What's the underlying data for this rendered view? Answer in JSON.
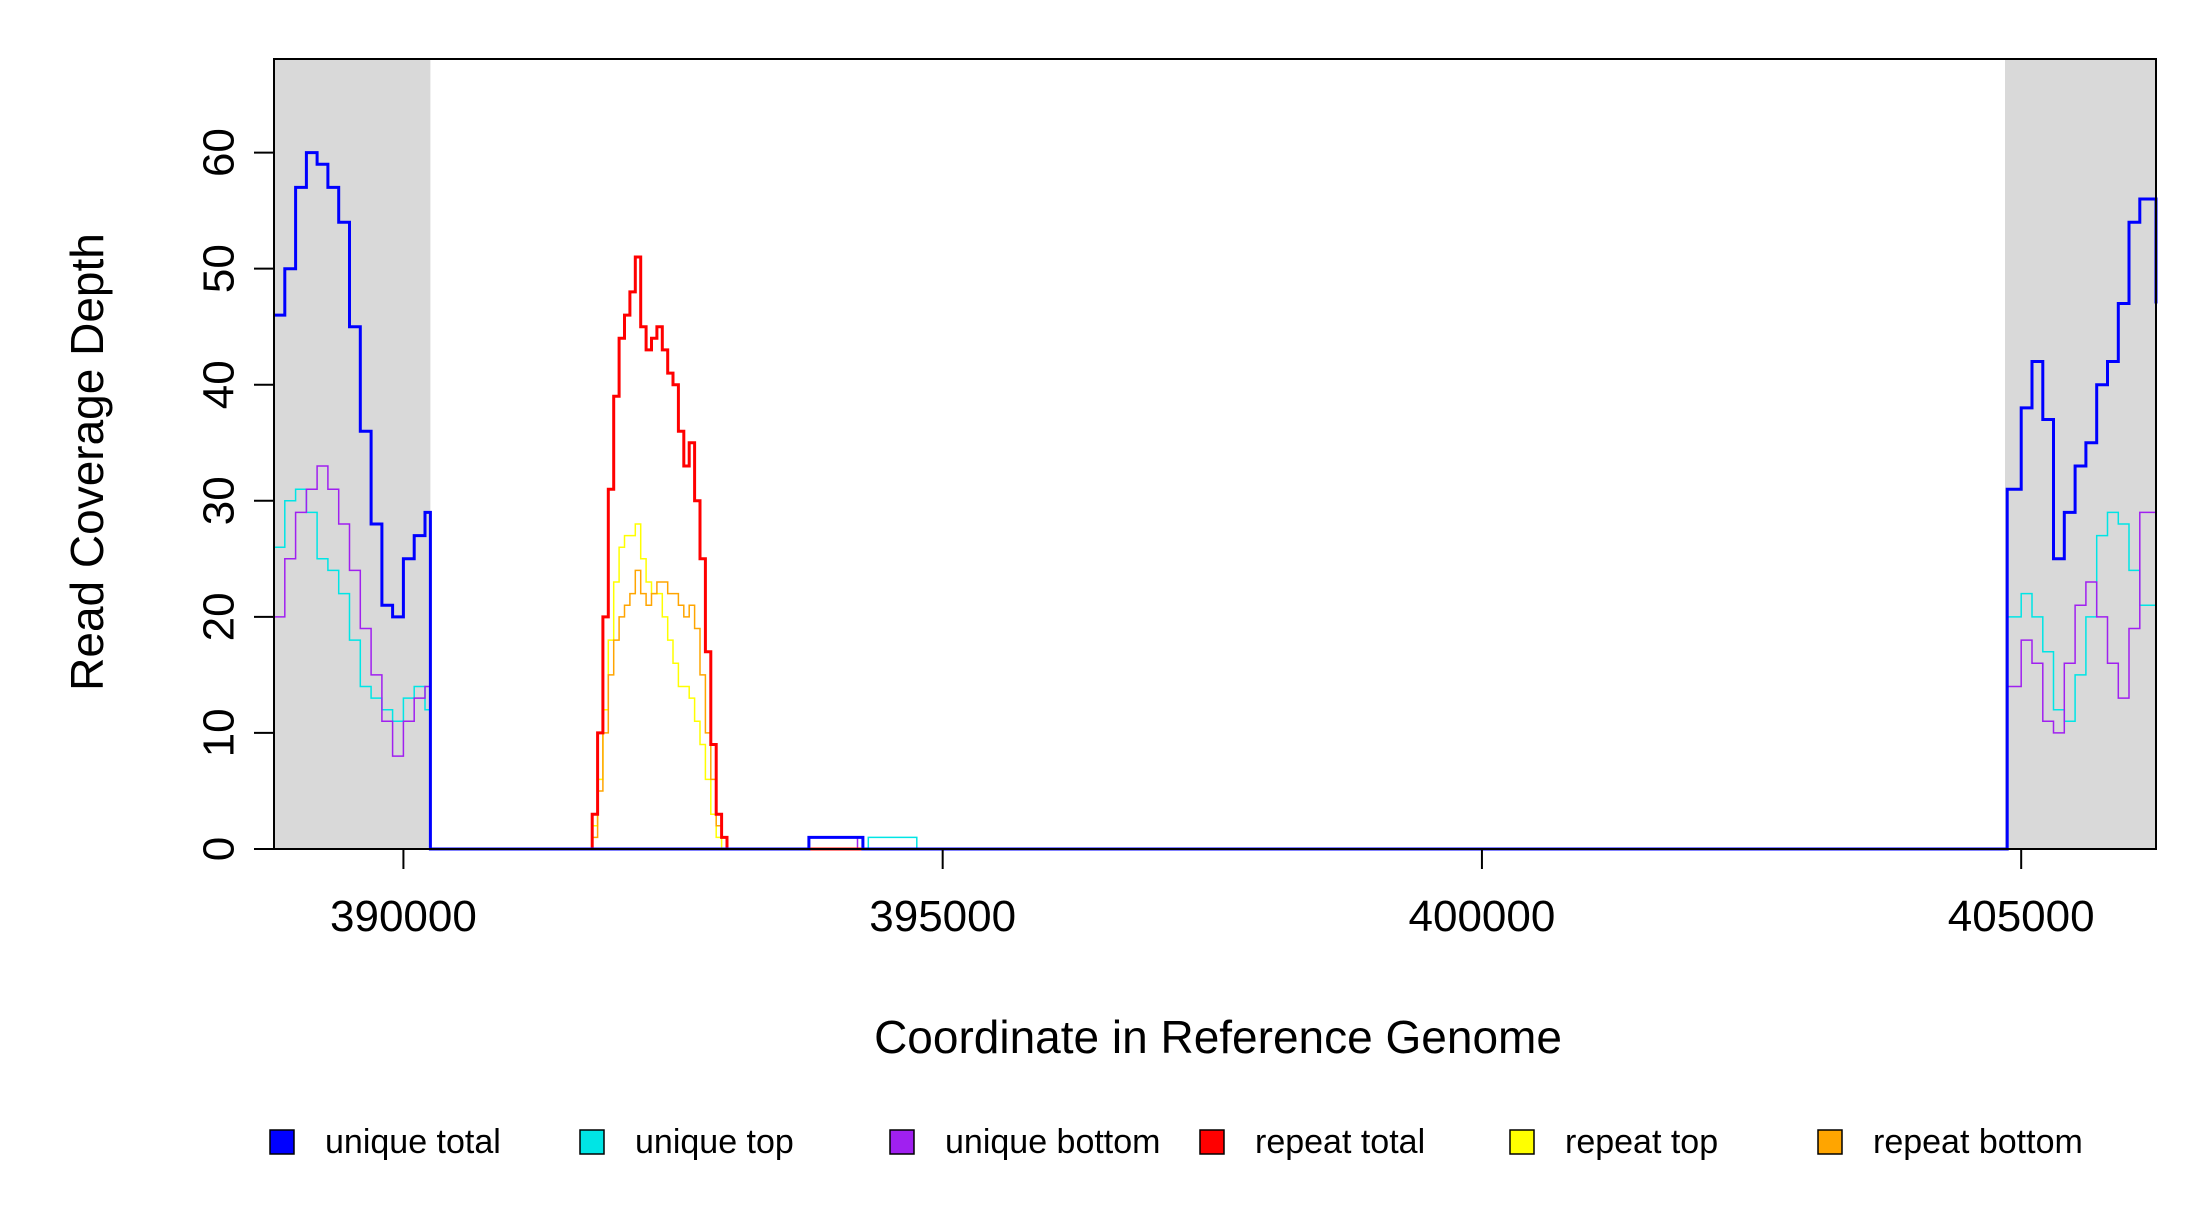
{
  "chart_data": {
    "type": "line",
    "title": "",
    "xlabel": "Coordinate in Reference Genome",
    "ylabel": "Read Coverage Depth",
    "xlim": [
      388800,
      406250
    ],
    "ylim": [
      0,
      65
    ],
    "x_ticks": [
      390000,
      395000,
      400000,
      405000
    ],
    "y_ticks": [
      0,
      10,
      20,
      30,
      40,
      50,
      60
    ],
    "grid": false,
    "legend_position": "bottom",
    "shaded_regions": [
      {
        "x0": 388800,
        "x1": 390250,
        "color": "#d9d9d9"
      },
      {
        "x0": 404850,
        "x1": 406250,
        "color": "#d9d9d9"
      }
    ],
    "series": [
      {
        "name": "unique total",
        "color": "#0000ff",
        "stroke_width": 3,
        "x": [
          388800,
          388900,
          389000,
          389100,
          389200,
          389300,
          389400,
          389500,
          389600,
          389700,
          389800,
          389900,
          390000,
          390100,
          390200,
          390250,
          390260,
          393750,
          393760,
          394000,
          394010,
          394250,
          394260,
          404850,
          404870,
          405000,
          405100,
          405200,
          405300,
          405400,
          405500,
          405600,
          405700,
          405800,
          405900,
          406000,
          406100,
          406250
        ],
        "y": [
          46,
          50,
          57,
          60,
          59,
          57,
          54,
          45,
          36,
          28,
          21,
          20,
          25,
          27,
          29,
          0,
          0,
          0,
          1,
          1,
          1,
          1,
          0,
          0,
          31,
          38,
          42,
          37,
          25,
          29,
          33,
          35,
          40,
          42,
          47,
          54,
          56,
          47
        ]
      },
      {
        "name": "unique top",
        "color": "#00e5e5",
        "stroke_width": 1.5,
        "x": [
          388800,
          388900,
          389000,
          389100,
          389200,
          389300,
          389400,
          389500,
          389600,
          389700,
          389800,
          389900,
          390000,
          390100,
          390200,
          390250,
          390260,
          394300,
          394310,
          394750,
          394760,
          404850,
          404870,
          405000,
          405100,
          405200,
          405300,
          405400,
          405500,
          405600,
          405700,
          405800,
          405900,
          406000,
          406100,
          406250
        ],
        "y": [
          26,
          30,
          31,
          29,
          25,
          24,
          22,
          18,
          14,
          13,
          12,
          11,
          13,
          14,
          12,
          0,
          0,
          0,
          1,
          1,
          0,
          0,
          20,
          22,
          20,
          17,
          12,
          11,
          15,
          20,
          27,
          29,
          28,
          24,
          21,
          16
        ]
      },
      {
        "name": "unique bottom",
        "color": "#a020f0",
        "stroke_width": 1.5,
        "x": [
          388800,
          388900,
          389000,
          389100,
          389200,
          389300,
          389400,
          389500,
          389600,
          389700,
          389800,
          389900,
          390000,
          390100,
          390200,
          390250,
          390260,
          393750,
          393760,
          394200,
          394210,
          404850,
          404870,
          405000,
          405100,
          405200,
          405300,
          405400,
          405500,
          405600,
          405700,
          405800,
          405900,
          406000,
          406100,
          406250
        ],
        "y": [
          20,
          25,
          29,
          31,
          33,
          31,
          28,
          24,
          19,
          15,
          11,
          8,
          11,
          13,
          14,
          0,
          0,
          0,
          1,
          1,
          0,
          0,
          14,
          18,
          16,
          11,
          10,
          16,
          21,
          23,
          20,
          16,
          13,
          19,
          29,
          32
        ]
      },
      {
        "name": "repeat total",
        "color": "#ff0000",
        "stroke_width": 3,
        "x": [
          390260,
          391700,
          391750,
          391800,
          391850,
          391900,
          391950,
          392000,
          392050,
          392100,
          392150,
          392200,
          392250,
          392300,
          392350,
          392400,
          392450,
          392500,
          392550,
          392600,
          392650,
          392700,
          392750,
          392800,
          392850,
          392900,
          392950,
          393000,
          393050,
          404850
        ],
        "y": [
          0,
          0,
          3,
          10,
          20,
          31,
          39,
          44,
          46,
          48,
          51,
          45,
          43,
          44,
          45,
          43,
          41,
          40,
          36,
          33,
          35,
          30,
          25,
          17,
          9,
          3,
          1,
          0,
          0,
          0
        ]
      },
      {
        "name": "repeat top",
        "color": "#ffff00",
        "stroke_width": 1.5,
        "x": [
          390260,
          391700,
          391750,
          391800,
          391850,
          391900,
          391950,
          392000,
          392050,
          392100,
          392150,
          392200,
          392250,
          392300,
          392350,
          392400,
          392450,
          392500,
          392550,
          392600,
          392650,
          392700,
          392750,
          392800,
          392850,
          392900,
          392950,
          393000,
          393050,
          404850
        ],
        "y": [
          0,
          0,
          2,
          6,
          12,
          18,
          23,
          26,
          27,
          27,
          28,
          25,
          23,
          22,
          22,
          20,
          18,
          16,
          14,
          14,
          13,
          11,
          9,
          6,
          3,
          1,
          0,
          0,
          0,
          0
        ]
      },
      {
        "name": "repeat bottom",
        "color": "#ffa500",
        "stroke_width": 1.5,
        "x": [
          390260,
          391700,
          391750,
          391800,
          391850,
          391900,
          391950,
          392000,
          392050,
          392100,
          392150,
          392200,
          392250,
          392300,
          392350,
          392400,
          392450,
          392500,
          392550,
          392600,
          392650,
          392700,
          392750,
          392800,
          392850,
          392900,
          392950,
          393000,
          393050,
          404850
        ],
        "y": [
          0,
          0,
          1,
          5,
          10,
          15,
          18,
          20,
          21,
          22,
          24,
          22,
          21,
          22,
          23,
          23,
          22,
          22,
          21,
          20,
          21,
          19,
          15,
          10,
          6,
          2,
          1,
          0,
          0,
          0
        ]
      }
    ]
  }
}
